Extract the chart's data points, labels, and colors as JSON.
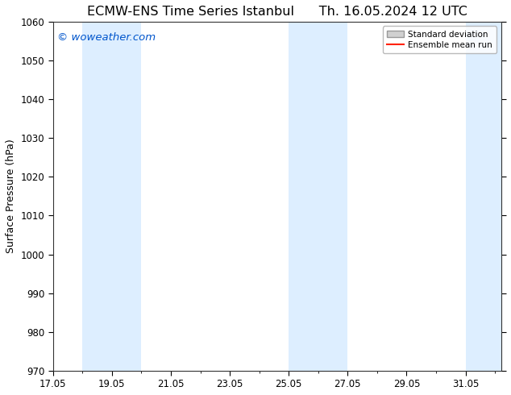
{
  "title": "ECMW-ENS Time Series Istanbul      Th. 16.05.2024 12 UTC",
  "ylabel": "Surface Pressure (hPa)",
  "ylim": [
    970,
    1060
  ],
  "yticks": [
    970,
    980,
    990,
    1000,
    1010,
    1020,
    1030,
    1040,
    1050,
    1060
  ],
  "xmin": 17.0,
  "xmax": 32.2,
  "xtick_labels": [
    "17.05",
    "19.05",
    "21.05",
    "23.05",
    "25.05",
    "27.05",
    "29.05",
    "31.05"
  ],
  "xtick_positions": [
    17,
    19,
    21,
    23,
    25,
    27,
    29,
    31
  ],
  "shaded_regions": [
    {
      "start": 18.0,
      "end": 20.0
    },
    {
      "start": 25.0,
      "end": 27.0
    },
    {
      "start": 31.0,
      "end": 33.0
    }
  ],
  "shade_color": "#ddeeff",
  "watermark_text": "© woweather.com",
  "watermark_color": "#0055cc",
  "legend_std_label": "Standard deviation",
  "legend_mean_label": "Ensemble mean run",
  "legend_mean_color": "#ff2200",
  "legend_std_facecolor": "#d0d0d0",
  "legend_std_edgecolor": "#999999",
  "bg_color": "#ffffff",
  "spine_color": "#333333",
  "title_fontsize": 11.5,
  "axis_label_fontsize": 9,
  "tick_fontsize": 8.5,
  "watermark_fontsize": 9.5
}
